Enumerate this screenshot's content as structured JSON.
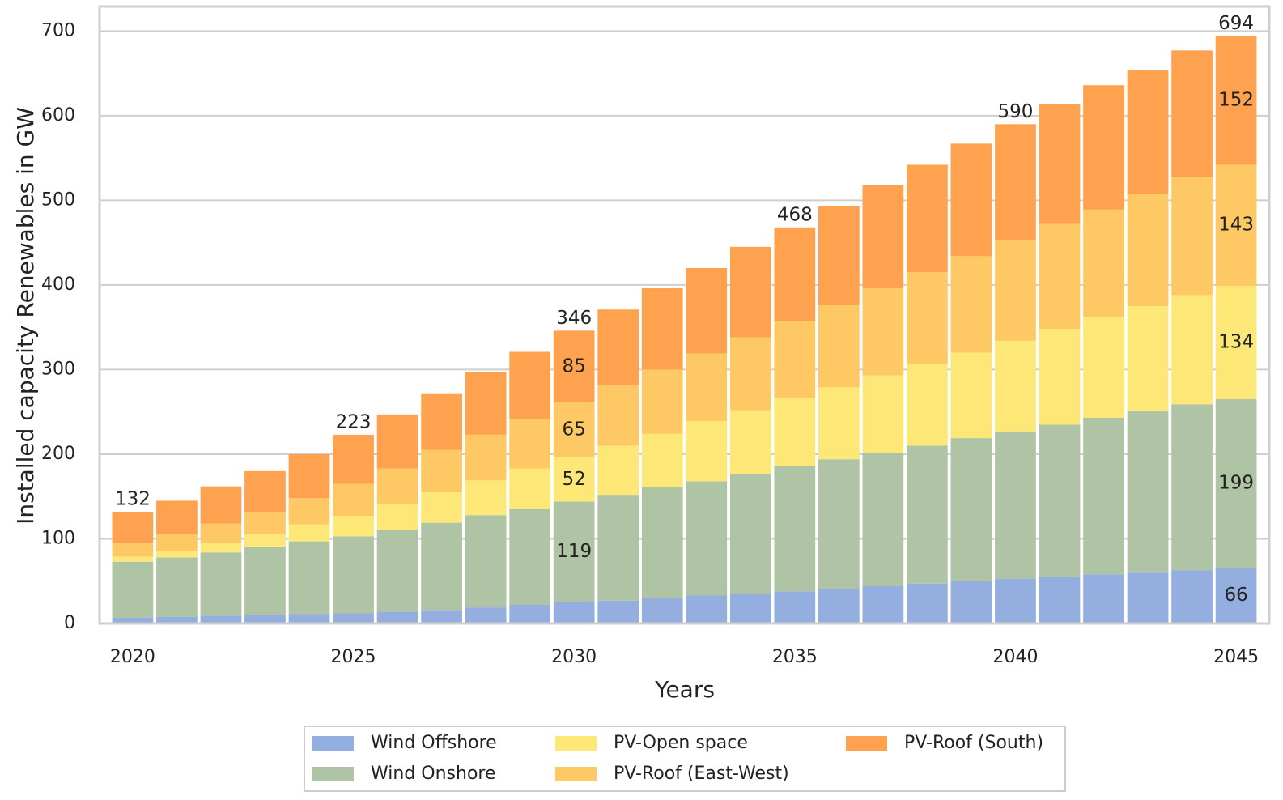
{
  "chart_data": {
    "type": "stacked_bar",
    "x_label": "Years",
    "y_label": "Installed capacity Renewables in GW",
    "categories": [
      2020,
      2021,
      2022,
      2023,
      2024,
      2025,
      2026,
      2027,
      2028,
      2029,
      2030,
      2031,
      2032,
      2033,
      2034,
      2035,
      2036,
      2037,
      2038,
      2039,
      2040,
      2041,
      2042,
      2043,
      2044,
      2045
    ],
    "xlim": [
      2019.25,
      2045.75
    ],
    "xticks": [
      2020,
      2025,
      2030,
      2035,
      2040,
      2045
    ],
    "ylim": [
      0,
      729
    ],
    "yticks": [
      0,
      100,
      200,
      300,
      400,
      500,
      600,
      700
    ],
    "grid": true,
    "series": [
      {
        "name": "Wind Offshore",
        "color": "#94aee0",
        "values": [
          7,
          8,
          9,
          10,
          11,
          12,
          14,
          16,
          19,
          22,
          25,
          27,
          30,
          33,
          35,
          38,
          41,
          44,
          47,
          50,
          53,
          55,
          58,
          60,
          63,
          66
        ],
        "value_labels": [
          null,
          null,
          null,
          null,
          null,
          null,
          null,
          null,
          null,
          null,
          null,
          null,
          null,
          null,
          null,
          null,
          null,
          null,
          null,
          null,
          null,
          null,
          null,
          null,
          null,
          "66"
        ]
      },
      {
        "name": "Wind Onshore",
        "color": "#afc4a4",
        "values": [
          66,
          70,
          75,
          81,
          86,
          91,
          97,
          103,
          109,
          114,
          119,
          125,
          131,
          135,
          142,
          148,
          153,
          158,
          163,
          169,
          174,
          180,
          185,
          191,
          196,
          199
        ],
        "value_labels": [
          null,
          null,
          null,
          null,
          null,
          null,
          null,
          null,
          null,
          null,
          "119",
          null,
          null,
          null,
          null,
          null,
          null,
          null,
          null,
          null,
          null,
          null,
          null,
          null,
          null,
          "199"
        ]
      },
      {
        "name": "PV-Open space",
        "color": "#fde877",
        "values": [
          6,
          8,
          11,
          14,
          20,
          24,
          30,
          36,
          41,
          47,
          52,
          58,
          63,
          71,
          75,
          80,
          85,
          91,
          97,
          101,
          107,
          113,
          119,
          124,
          129,
          134
        ],
        "value_labels": [
          null,
          null,
          null,
          null,
          null,
          null,
          null,
          null,
          null,
          null,
          "52",
          null,
          null,
          null,
          null,
          null,
          null,
          null,
          null,
          null,
          null,
          null,
          null,
          null,
          null,
          "134"
        ]
      },
      {
        "name": "PV-Roof (East-West)",
        "color": "#fec864",
        "values": [
          16,
          19,
          23,
          27,
          31,
          38,
          42,
          50,
          54,
          59,
          65,
          71,
          76,
          80,
          86,
          91,
          97,
          103,
          108,
          114,
          119,
          124,
          127,
          133,
          139,
          143
        ],
        "value_labels": [
          null,
          null,
          null,
          null,
          null,
          null,
          null,
          null,
          null,
          null,
          "65",
          null,
          null,
          null,
          null,
          null,
          null,
          null,
          null,
          null,
          null,
          null,
          null,
          null,
          null,
          "143"
        ]
      },
      {
        "name": "PV-Roof (South)",
        "color": "#fea24f",
        "values": [
          37,
          40,
          44,
          48,
          52,
          58,
          64,
          67,
          74,
          79,
          85,
          90,
          96,
          101,
          107,
          111,
          117,
          122,
          127,
          133,
          137,
          142,
          147,
          146,
          150,
          152
        ],
        "value_labels": [
          null,
          null,
          null,
          null,
          null,
          null,
          null,
          null,
          null,
          null,
          "85",
          null,
          null,
          null,
          null,
          null,
          null,
          null,
          null,
          null,
          null,
          null,
          null,
          null,
          null,
          "152"
        ]
      }
    ],
    "totals": [
      132,
      null,
      null,
      null,
      null,
      223,
      null,
      null,
      null,
      null,
      346,
      null,
      null,
      null,
      null,
      468,
      null,
      null,
      null,
      null,
      590,
      null,
      null,
      null,
      null,
      694
    ]
  }
}
